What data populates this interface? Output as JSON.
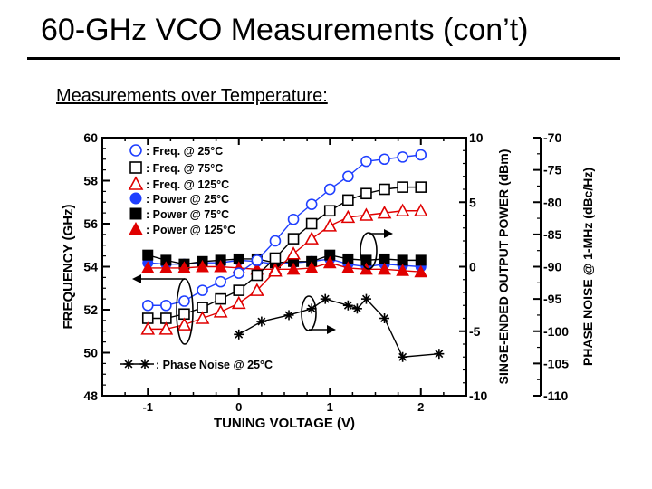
{
  "slide": {
    "title": "60-GHz VCO Measurements (con’t)",
    "subtitle": "Measurements over Temperature:"
  },
  "chart_data": {
    "type": "line",
    "xlabel": "TUNING VOLTAGE (V)",
    "ylabel_left": "FREQUENCY (GHz)",
    "ylabel_right1": "SINGE-ENDED OUTPUT POWER (dBm)",
    "ylabel_right2": "PHASE NOISE @ 1-MHz (dBc/Hz)",
    "xlim": [
      -1.5,
      2.5
    ],
    "ylim_left": [
      48,
      60
    ],
    "ylim_power": [
      -10,
      10
    ],
    "ylim_phase_noise": [
      -110,
      -70
    ],
    "x_ticks": [
      "-1",
      "0",
      "1",
      "2"
    ],
    "y_ticks_left": [
      "48",
      "50",
      "52",
      "54",
      "56",
      "58",
      "60"
    ],
    "y_ticks_power": [
      "-10",
      "-5",
      "0",
      "5",
      "10"
    ],
    "y_ticks_phase_noise": [
      "-110",
      "-105",
      "-100",
      "-95",
      "-90",
      "-85",
      "-80",
      "-75",
      "-70"
    ],
    "grid": false,
    "legend_position": "top-left",
    "series": [
      {
        "name": ": Freq. @ 25°C",
        "axis": "frequency",
        "marker": "circle-open",
        "color": "#1f3fff",
        "x": [
          -1,
          -0.8,
          -0.6,
          -0.4,
          -0.2,
          0,
          0.2,
          0.4,
          0.6,
          0.8,
          1,
          1.2,
          1.4,
          1.6,
          1.8,
          2
        ],
        "y": [
          52.2,
          52.2,
          52.4,
          52.9,
          53.3,
          53.7,
          54.3,
          55.2,
          56.2,
          56.9,
          57.6,
          58.2,
          58.9,
          59.0,
          59.1,
          59.2
        ]
      },
      {
        "name": ": Freq. @ 75°C",
        "axis": "frequency",
        "marker": "square-open",
        "color": "#000000",
        "x": [
          -1,
          -0.8,
          -0.6,
          -0.4,
          -0.2,
          0,
          0.2,
          0.4,
          0.6,
          0.8,
          1,
          1.2,
          1.4,
          1.6,
          1.8,
          2
        ],
        "y": [
          51.6,
          51.6,
          51.8,
          52.1,
          52.5,
          52.9,
          53.6,
          54.4,
          55.3,
          56.0,
          56.6,
          57.1,
          57.4,
          57.6,
          57.7,
          57.7
        ]
      },
      {
        "name": ": Freq. @ 125°C",
        "axis": "frequency",
        "marker": "triangle-open",
        "color": "#e00000",
        "x": [
          -1,
          -0.8,
          -0.6,
          -0.4,
          -0.2,
          0,
          0.2,
          0.4,
          0.6,
          0.8,
          1,
          1.2,
          1.4,
          1.6,
          1.8,
          2
        ],
        "y": [
          51.1,
          51.1,
          51.3,
          51.6,
          51.9,
          52.3,
          52.9,
          53.8,
          54.6,
          55.3,
          55.9,
          56.3,
          56.4,
          56.5,
          56.6,
          56.6
        ]
      },
      {
        "name": ": Power @ 25°C",
        "axis": "power",
        "marker": "circle-filled",
        "color": "#1f3fff",
        "x": [
          -1,
          -0.8,
          -0.6,
          -0.4,
          -0.2,
          0,
          0.2,
          0.4,
          0.6,
          0.8,
          1,
          1.2,
          1.4,
          1.6,
          1.8,
          2
        ],
        "y": [
          0.3,
          0.2,
          0.2,
          0.3,
          0.3,
          0.5,
          0.4,
          0.2,
          0.3,
          0.4,
          0.6,
          0.2,
          0.0,
          0.2,
          0.1,
          0.0
        ]
      },
      {
        "name": ": Power @ 75°C",
        "axis": "power",
        "marker": "square-filled",
        "color": "#000000",
        "x": [
          -1,
          -0.8,
          -0.6,
          -0.4,
          -0.2,
          0,
          0.2,
          0.4,
          0.6,
          0.8,
          1,
          1.2,
          1.4,
          1.6,
          1.8,
          2
        ],
        "y": [
          0.9,
          0.5,
          0.2,
          0.4,
          0.5,
          0.6,
          0.6,
          0.3,
          0.4,
          0.4,
          0.9,
          0.6,
          0.5,
          0.6,
          0.5,
          0.5
        ]
      },
      {
        "name": ": Power @ 125°C",
        "axis": "power",
        "marker": "triangle-filled",
        "color": "#e00000",
        "x": [
          -1,
          -0.8,
          -0.6,
          -0.4,
          -0.2,
          0,
          0.2,
          0.4,
          0.6,
          0.8,
          1,
          1.2,
          1.4,
          1.6,
          1.8,
          2
        ],
        "y": [
          -0.1,
          -0.1,
          -0.1,
          0.0,
          0.0,
          -0.1,
          -0.2,
          -0.2,
          -0.2,
          -0.1,
          0.3,
          -0.1,
          -0.2,
          -0.2,
          -0.3,
          -0.4
        ]
      },
      {
        "name": ": Phase Noise @ 25°C",
        "axis": "phase_noise",
        "marker": "asterisk",
        "color": "#000000",
        "x": [
          0,
          0.25,
          0.55,
          0.8,
          0.95,
          1.2,
          1.3,
          1.4,
          1.6,
          1.8,
          2.2
        ],
        "y": [
          -100.5,
          -98.5,
          -97.5,
          -96.5,
          -95.0,
          -96.0,
          -96.5,
          -95.0,
          -98.0,
          -104.0,
          -103.5
        ]
      }
    ]
  }
}
